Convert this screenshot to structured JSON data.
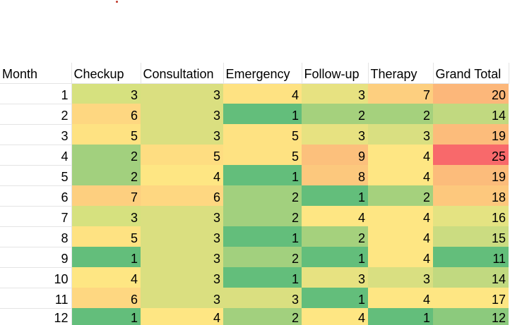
{
  "table": {
    "headers": [
      "Month",
      "Checkup",
      "Consultation",
      "Emergency",
      "Follow-up",
      "Therapy",
      "Grand Total"
    ],
    "rows": [
      {
        "month": "1",
        "values": [
          "3",
          "3",
          "4",
          "3",
          "7",
          "20"
        ],
        "colors": [
          "#d6e17f",
          "#dadf80",
          "#fee282",
          "#e7e281",
          "#fdcf7f",
          "#fcb77a"
        ]
      },
      {
        "month": "2",
        "values": [
          "6",
          "3",
          "1",
          "2",
          "2",
          "14"
        ],
        "colors": [
          "#fed781",
          "#dadf80",
          "#63be7b",
          "#a5d17d",
          "#a5d17d",
          "#c1d980"
        ]
      },
      {
        "month": "3",
        "values": [
          "5",
          "3",
          "5",
          "3",
          "3",
          "19"
        ],
        "colors": [
          "#fee282",
          "#dadf80",
          "#fee282",
          "#e7e281",
          "#d9df81",
          "#fcbc7b"
        ]
      },
      {
        "month": "4",
        "values": [
          "2",
          "5",
          "5",
          "9",
          "4",
          "25"
        ],
        "colors": [
          "#a2d07e",
          "#fedd81",
          "#fee282",
          "#fcc07c",
          "#fee683",
          "#f8696b"
        ]
      },
      {
        "month": "5",
        "values": [
          "2",
          "4",
          "1",
          "8",
          "4",
          "19"
        ],
        "colors": [
          "#a2d07e",
          "#fee683",
          "#63be7b",
          "#fcc87d",
          "#fee683",
          "#fcbc7b"
        ]
      },
      {
        "month": "6",
        "values": [
          "7",
          "6",
          "2",
          "1",
          "2",
          "18"
        ],
        "colors": [
          "#fdcf7f",
          "#fed781",
          "#a2d07e",
          "#63be7b",
          "#a5d17d",
          "#fdc87d"
        ]
      },
      {
        "month": "7",
        "values": [
          "3",
          "3",
          "2",
          "4",
          "4",
          "16"
        ],
        "colors": [
          "#d6e17f",
          "#dadf80",
          "#a2d07e",
          "#fee683",
          "#fee683",
          "#e4e382"
        ]
      },
      {
        "month": "8",
        "values": [
          "5",
          "3",
          "1",
          "2",
          "4",
          "15"
        ],
        "colors": [
          "#fee282",
          "#dadf80",
          "#63be7b",
          "#a5d17d",
          "#fee683",
          "#cbdc81"
        ]
      },
      {
        "month": "9",
        "values": [
          "1",
          "3",
          "2",
          "1",
          "4",
          "11"
        ],
        "colors": [
          "#63be7b",
          "#dadf80",
          "#a2d07e",
          "#63be7b",
          "#fee683",
          "#63be7b"
        ]
      },
      {
        "month": "10",
        "values": [
          "4",
          "3",
          "1",
          "3",
          "3",
          "14"
        ],
        "colors": [
          "#fee683",
          "#dadf80",
          "#63be7b",
          "#e7e281",
          "#d9df81",
          "#c1d980"
        ]
      },
      {
        "month": "11",
        "values": [
          "6",
          "3",
          "3",
          "1",
          "4",
          "17"
        ],
        "colors": [
          "#fed781",
          "#dadf80",
          "#dadf80",
          "#63be7b",
          "#fee683",
          "#fee683"
        ]
      },
      {
        "month": "12",
        "values": [
          "1",
          "4",
          "2",
          "4",
          "1",
          "12"
        ],
        "colors": [
          "#63be7b",
          "#fee683",
          "#a2d07e",
          "#fee683",
          "#63be7b",
          "#8cca7d"
        ]
      }
    ]
  }
}
